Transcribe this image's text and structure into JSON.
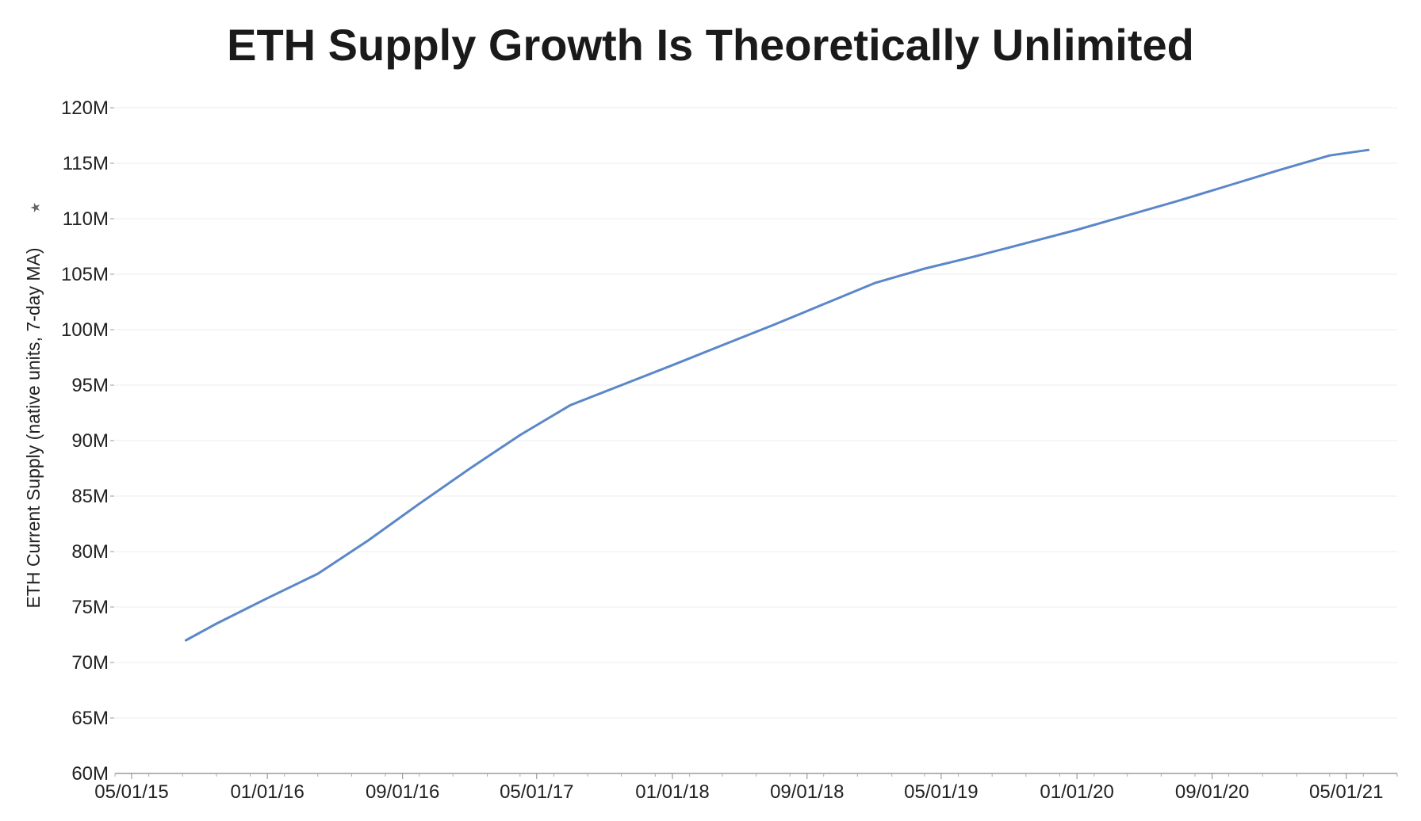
{
  "chart_data": {
    "type": "line",
    "title": "ETH Supply Growth Is Theoretically Unlimited",
    "ylabel": "ETH Current Supply (native units, 7-day MA)",
    "xlabel": "",
    "ylim": [
      60000000,
      120000000
    ],
    "y_ticks": [
      {
        "value": 120000000,
        "label": "120M"
      },
      {
        "value": 115000000,
        "label": "115M"
      },
      {
        "value": 110000000,
        "label": "110M"
      },
      {
        "value": 105000000,
        "label": "105M"
      },
      {
        "value": 100000000,
        "label": "100M"
      },
      {
        "value": 95000000,
        "label": "95M"
      },
      {
        "value": 90000000,
        "label": "90M"
      },
      {
        "value": 85000000,
        "label": "85M"
      },
      {
        "value": 80000000,
        "label": "80M"
      },
      {
        "value": 75000000,
        "label": "75M"
      },
      {
        "value": 70000000,
        "label": "70M"
      },
      {
        "value": 65000000,
        "label": "65M"
      },
      {
        "value": 60000000,
        "label": "60M"
      }
    ],
    "xlim": [
      "2015-04-01",
      "2021-08-01"
    ],
    "x_ticks": [
      {
        "value": "2015-05-01",
        "label": "05/01/15"
      },
      {
        "value": "2016-01-01",
        "label": "01/01/16"
      },
      {
        "value": "2016-09-01",
        "label": "09/01/16"
      },
      {
        "value": "2017-05-01",
        "label": "05/01/17"
      },
      {
        "value": "2018-01-01",
        "label": "01/01/18"
      },
      {
        "value": "2018-09-01",
        "label": "09/01/18"
      },
      {
        "value": "2019-05-01",
        "label": "05/01/19"
      },
      {
        "value": "2020-01-01",
        "label": "01/01/20"
      },
      {
        "value": "2020-09-01",
        "label": "09/01/20"
      },
      {
        "value": "2021-05-01",
        "label": "05/01/21"
      }
    ],
    "grid": true,
    "series": [
      {
        "color": "#5b87c9",
        "points": [
          {
            "x": "2015-08-07",
            "y": 72000000
          },
          {
            "x": "2015-10-01",
            "y": 73500000
          },
          {
            "x": "2016-01-01",
            "y": 75800000
          },
          {
            "x": "2016-04-01",
            "y": 78000000
          },
          {
            "x": "2016-07-01",
            "y": 81000000
          },
          {
            "x": "2016-10-01",
            "y": 84300000
          },
          {
            "x": "2017-01-01",
            "y": 87500000
          },
          {
            "x": "2017-04-01",
            "y": 90500000
          },
          {
            "x": "2017-07-01",
            "y": 93200000
          },
          {
            "x": "2017-10-01",
            "y": 95000000
          },
          {
            "x": "2018-01-01",
            "y": 96800000
          },
          {
            "x": "2018-04-01",
            "y": 98600000
          },
          {
            "x": "2018-07-01",
            "y": 100400000
          },
          {
            "x": "2018-10-01",
            "y": 102300000
          },
          {
            "x": "2019-01-01",
            "y": 104200000
          },
          {
            "x": "2019-04-01",
            "y": 105500000
          },
          {
            "x": "2019-07-01",
            "y": 106600000
          },
          {
            "x": "2019-10-01",
            "y": 107800000
          },
          {
            "x": "2020-01-01",
            "y": 109000000
          },
          {
            "x": "2020-04-01",
            "y": 110300000
          },
          {
            "x": "2020-07-01",
            "y": 111600000
          },
          {
            "x": "2020-10-01",
            "y": 113000000
          },
          {
            "x": "2021-01-01",
            "y": 114400000
          },
          {
            "x": "2021-04-01",
            "y": 115700000
          },
          {
            "x": "2021-06-10",
            "y": 116200000
          }
        ]
      }
    ]
  }
}
